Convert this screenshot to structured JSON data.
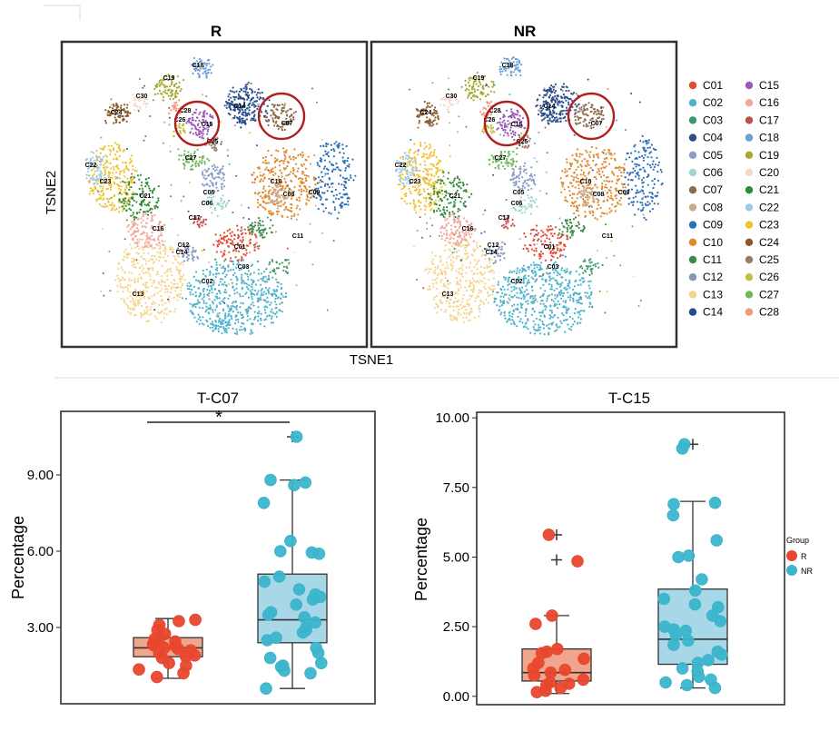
{
  "chart_data": [
    {
      "type": "scatter",
      "kind": "tsne",
      "panels": [
        "R",
        "NR"
      ],
      "xlabel": "TSNE1",
      "ylabel": "TSNE2",
      "highlighted_clusters": [
        "C07",
        "C15"
      ],
      "clusters": [
        {
          "name": "C01",
          "color": "#e24a33"
        },
        {
          "name": "C02",
          "color": "#4bb3cc"
        },
        {
          "name": "C03",
          "color": "#3d9a6e"
        },
        {
          "name": "C04",
          "color": "#2c4f8c"
        },
        {
          "name": "C05",
          "color": "#8a9cc8"
        },
        {
          "name": "C06",
          "color": "#9fd7d0"
        },
        {
          "name": "C07",
          "color": "#8c6a4a"
        },
        {
          "name": "C08",
          "color": "#c9a98a"
        },
        {
          "name": "C09",
          "color": "#2a6fb8"
        },
        {
          "name": "C10",
          "color": "#e08a2e"
        },
        {
          "name": "C11",
          "color": "#3f8a4a"
        },
        {
          "name": "C12",
          "color": "#8895b8"
        },
        {
          "name": "C13",
          "color": "#f5d48a"
        },
        {
          "name": "C14",
          "color": "#234a8a"
        },
        {
          "name": "C15",
          "color": "#9b59b6"
        },
        {
          "name": "C16",
          "color": "#f2a7a0"
        },
        {
          "name": "C17",
          "color": "#c0504d"
        },
        {
          "name": "C18",
          "color": "#6e9fd6"
        },
        {
          "name": "C19",
          "color": "#a6a832"
        },
        {
          "name": "C20",
          "color": "#f6d7c8"
        },
        {
          "name": "C21",
          "color": "#2e8b3a"
        },
        {
          "name": "C22",
          "color": "#9ccbee"
        },
        {
          "name": "C23",
          "color": "#f2c12e"
        },
        {
          "name": "C24",
          "color": "#8b5a2b"
        },
        {
          "name": "C25",
          "color": "#9a7a6a"
        },
        {
          "name": "C26",
          "color": "#c2c040"
        },
        {
          "name": "C27",
          "color": "#6cb85a"
        },
        {
          "name": "C28",
          "color": "#ef9a7a"
        }
      ]
    },
    {
      "type": "box",
      "title": "T-C07",
      "ylabel": "Percentage",
      "yticks": [
        "3.00",
        "6.00",
        "9.00"
      ],
      "ylim": [
        0,
        11.5
      ],
      "significance": "*",
      "groups": [
        {
          "name": "R",
          "color": "#e8472e",
          "fill": "#f0a58d",
          "q1": 1.85,
          "median": 2.2,
          "q3": 2.6,
          "whisker_low": 1.0,
          "whisker_high": 3.35,
          "outliers": [],
          "points": [
            3.3,
            3.25,
            3.1,
            2.9,
            2.75,
            2.6,
            2.55,
            2.45,
            2.35,
            2.3,
            2.25,
            2.2,
            2.15,
            2.1,
            2.0,
            1.9,
            1.85,
            1.8,
            1.6,
            1.5,
            1.35,
            1.2,
            1.05
          ]
        },
        {
          "name": "NR",
          "color": "#3bb5cc",
          "fill": "#a8d8e8",
          "q1": 2.4,
          "median": 3.3,
          "q3": 5.1,
          "whisker_low": 0.6,
          "whisker_high": 8.8,
          "outliers": [
            10.5
          ],
          "points": [
            10.5,
            8.8,
            8.7,
            8.6,
            7.9,
            6.4,
            6.0,
            5.95,
            5.9,
            5.0,
            4.8,
            4.5,
            4.3,
            4.2,
            4.1,
            3.9,
            3.6,
            3.5,
            3.4,
            3.2,
            3.0,
            2.9,
            2.8,
            2.6,
            2.5,
            2.2,
            2.0,
            1.8,
            1.6,
            1.5,
            1.45,
            1.3,
            1.2,
            0.6
          ]
        }
      ]
    },
    {
      "type": "box",
      "title": "T-C15",
      "ylabel": "Percentage",
      "yticks": [
        "0.00",
        "2.50",
        "5.00",
        "7.50",
        "10.00"
      ],
      "ylim": [
        -0.3,
        10.2
      ],
      "legend_title": "Group",
      "groups": [
        {
          "name": "R",
          "color": "#e8472e",
          "fill": "#f0a58d",
          "q1": 0.55,
          "median": 0.85,
          "q3": 1.7,
          "whisker_low": 0.1,
          "whisker_high": 2.9,
          "outliers": [
            5.8,
            4.9
          ],
          "points": [
            5.8,
            4.85,
            2.9,
            2.6,
            1.7,
            1.6,
            1.55,
            1.35,
            1.2,
            1.0,
            0.95,
            0.85,
            0.75,
            0.6,
            0.5,
            0.45,
            0.4,
            0.3,
            0.2,
            0.15
          ]
        },
        {
          "name": "NR",
          "color": "#3bb5cc",
          "fill": "#a8d8e8",
          "q1": 1.15,
          "median": 2.05,
          "q3": 3.85,
          "whisker_low": 0.3,
          "whisker_high": 7.0,
          "outliers": [
            9.05
          ],
          "points": [
            9.05,
            8.9,
            6.95,
            6.9,
            6.5,
            5.6,
            5.05,
            5.0,
            4.2,
            3.8,
            3.5,
            3.3,
            3.2,
            2.9,
            2.7,
            2.5,
            2.4,
            2.35,
            2.2,
            2.0,
            1.85,
            1.6,
            1.5,
            1.3,
            1.2,
            1.0,
            0.9,
            0.7,
            0.6,
            0.5,
            0.4,
            0.3
          ]
        }
      ]
    }
  ]
}
